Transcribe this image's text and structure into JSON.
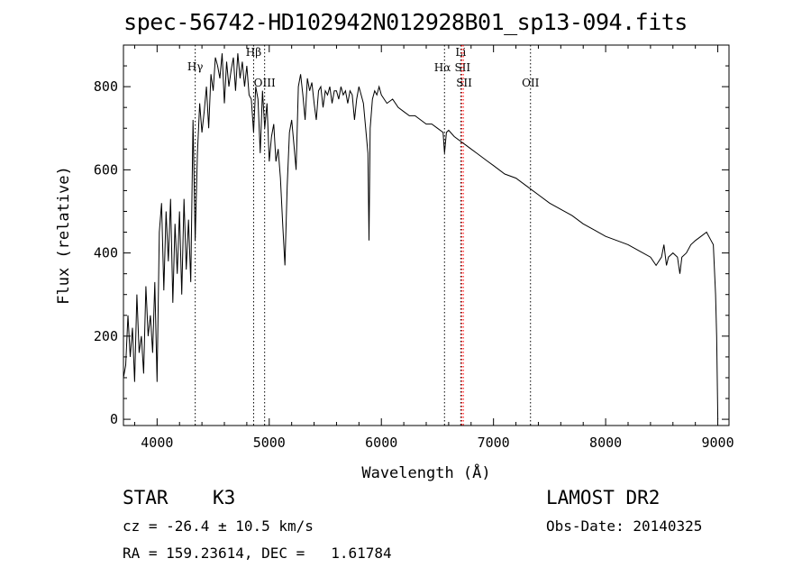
{
  "header": {
    "title": "spec-56742-HD102942N012928B01_sp13-094.fits"
  },
  "info": {
    "object_type": "STAR",
    "subclass": "K3",
    "survey": "LAMOST DR2",
    "cz": "cz = -26.4 ± 10.5 km/s",
    "obs_date": "Obs-Date: 20140325",
    "radec": "RA = 159.23614, DEC =   1.61784"
  },
  "colors": {
    "spectrum": "#000000",
    "absorption_line": "#000000",
    "sii_line": "#ff0000"
  },
  "chart_data": {
    "type": "line",
    "xlabel": "Wavelength (Å)",
    "ylabel": "Flux (relative)",
    "xlim": [
      3700,
      9100
    ],
    "ylim": [
      -15,
      900
    ],
    "xticks": [
      "4000",
      "5000",
      "6000",
      "7000",
      "8000",
      "9000"
    ],
    "yticks": [
      "0",
      "200",
      "400",
      "600",
      "800"
    ],
    "grid": false,
    "series": [
      {
        "x": [
          3700,
          3720,
          3740,
          3760,
          3780,
          3800,
          3820,
          3840,
          3860,
          3880,
          3900,
          3920,
          3940,
          3960,
          3980,
          4000,
          4020,
          4040,
          4060,
          4080,
          4100,
          4120,
          4140,
          4160,
          4180,
          4200,
          4220,
          4240,
          4260,
          4280,
          4300,
          4320,
          4340,
          4360,
          4380,
          4400,
          4420,
          4440,
          4460,
          4480,
          4500,
          4520,
          4540,
          4560,
          4580,
          4600,
          4620,
          4640,
          4660,
          4680,
          4700,
          4720,
          4740,
          4760,
          4780,
          4800,
          4820,
          4840,
          4860,
          4880,
          4900,
          4920,
          4940,
          4960,
          4980,
          5000,
          5020,
          5040,
          5060,
          5080,
          5100,
          5120,
          5140,
          5160,
          5180,
          5200,
          5220,
          5240,
          5260,
          5280,
          5300,
          5320,
          5340,
          5360,
          5380,
          5400,
          5420,
          5440,
          5460,
          5480,
          5500,
          5520,
          5540,
          5560,
          5580,
          5600,
          5620,
          5640,
          5660,
          5680,
          5700,
          5720,
          5740,
          5760,
          5780,
          5800,
          5820,
          5840,
          5860,
          5880,
          5890,
          5900,
          5920,
          5940,
          5960,
          5980,
          6000,
          6050,
          6100,
          6150,
          6200,
          6250,
          6300,
          6350,
          6400,
          6450,
          6500,
          6550,
          6563,
          6580,
          6600,
          6650,
          6700,
          6750,
          6800,
          6850,
          6900,
          6950,
          7000,
          7100,
          7200,
          7300,
          7400,
          7500,
          7600,
          7700,
          7800,
          7900,
          8000,
          8100,
          8200,
          8300,
          8400,
          8450,
          8498,
          8520,
          8542,
          8560,
          8600,
          8640,
          8662,
          8680,
          8720,
          8760,
          8800,
          8850,
          8900,
          8940,
          8960,
          8980,
          8990,
          9000
        ],
        "y": [
          100,
          130,
          250,
          150,
          220,
          90,
          300,
          160,
          200,
          110,
          320,
          200,
          250,
          160,
          330,
          90,
          450,
          520,
          310,
          500,
          380,
          530,
          280,
          470,
          350,
          500,
          300,
          530,
          360,
          480,
          330,
          720,
          430,
          640,
          760,
          690,
          740,
          800,
          700,
          830,
          790,
          870,
          850,
          820,
          880,
          760,
          860,
          800,
          840,
          870,
          790,
          880,
          820,
          860,
          800,
          850,
          780,
          770,
          690,
          800,
          770,
          640,
          790,
          700,
          760,
          620,
          680,
          710,
          620,
          650,
          580,
          470,
          370,
          560,
          690,
          720,
          660,
          600,
          800,
          830,
          780,
          720,
          820,
          790,
          810,
          760,
          720,
          790,
          800,
          750,
          790,
          780,
          800,
          760,
          790,
          790,
          770,
          800,
          780,
          790,
          760,
          790,
          780,
          720,
          770,
          800,
          780,
          760,
          700,
          640,
          430,
          700,
          770,
          790,
          780,
          800,
          780,
          760,
          770,
          750,
          740,
          730,
          730,
          720,
          710,
          710,
          700,
          690,
          640,
          690,
          695,
          680,
          670,
          660,
          650,
          640,
          630,
          620,
          610,
          590,
          580,
          560,
          540,
          520,
          505,
          490,
          470,
          455,
          440,
          430,
          420,
          405,
          390,
          370,
          390,
          420,
          370,
          390,
          400,
          390,
          350,
          390,
          400,
          420,
          430,
          440,
          450,
          430,
          420,
          300,
          200,
          0
        ]
      }
    ],
    "annotations": [
      {
        "label": "Hγ",
        "x": 4340
      },
      {
        "label": "Hβ",
        "x": 4861
      },
      {
        "label": "OIII",
        "x": 4959
      },
      {
        "label": "Hα",
        "x": 6563
      },
      {
        "label": "Li",
        "x": 6708
      },
      {
        "label": "SII",
        "x": 6717
      },
      {
        "label": "SII",
        "x": 6731
      },
      {
        "label": "OII",
        "x": 7330
      }
    ]
  }
}
